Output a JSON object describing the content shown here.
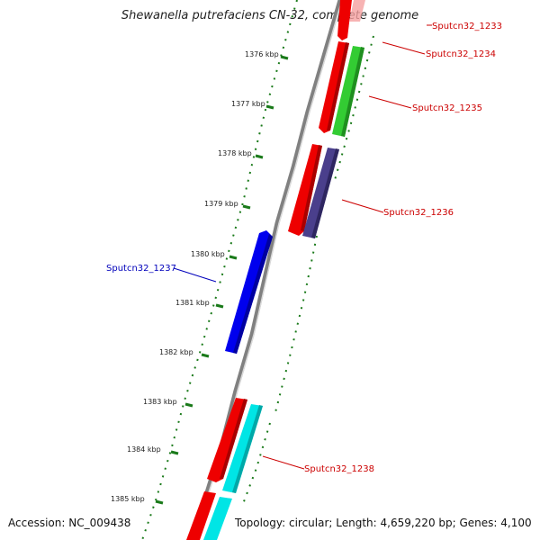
{
  "title": "Shewanella putrefaciens CN-32, complete genome",
  "footer": {
    "accession": "Accession: NC_009438",
    "summary": "Topology: circular; Length: 4,659,220 bp; Genes: 4,100"
  },
  "ticks": [
    "1376 kbp",
    "1377 kbp",
    "1378 kbp",
    "1379 kbp",
    "1380 kbp",
    "1381 kbp",
    "1382 kbp",
    "1383 kbp",
    "1384 kbp",
    "1385 kbp"
  ],
  "genes": [
    {
      "label": "Sputcn32_1233",
      "color": "#cc0000"
    },
    {
      "label": "Sputcn32_1234",
      "color": "#cc0000"
    },
    {
      "label": "Sputcn32_1235",
      "color": "#cc0000"
    },
    {
      "label": "Sputcn32_1236",
      "color": "#cc0000"
    },
    {
      "label": "Sputcn32_1237",
      "color": "#0000bb"
    },
    {
      "label": "Sputcn32_1238",
      "color": "#cc0000"
    }
  ],
  "colors": {
    "backbone": "#808080",
    "tick_marks": "#1a7a1a",
    "cds_forward": "#ee0000",
    "cds_reverse": "#0000ee",
    "feature_green": "#33cc33",
    "feature_purple": "#4a3f8c",
    "feature_cyan": "#00e5e5"
  }
}
